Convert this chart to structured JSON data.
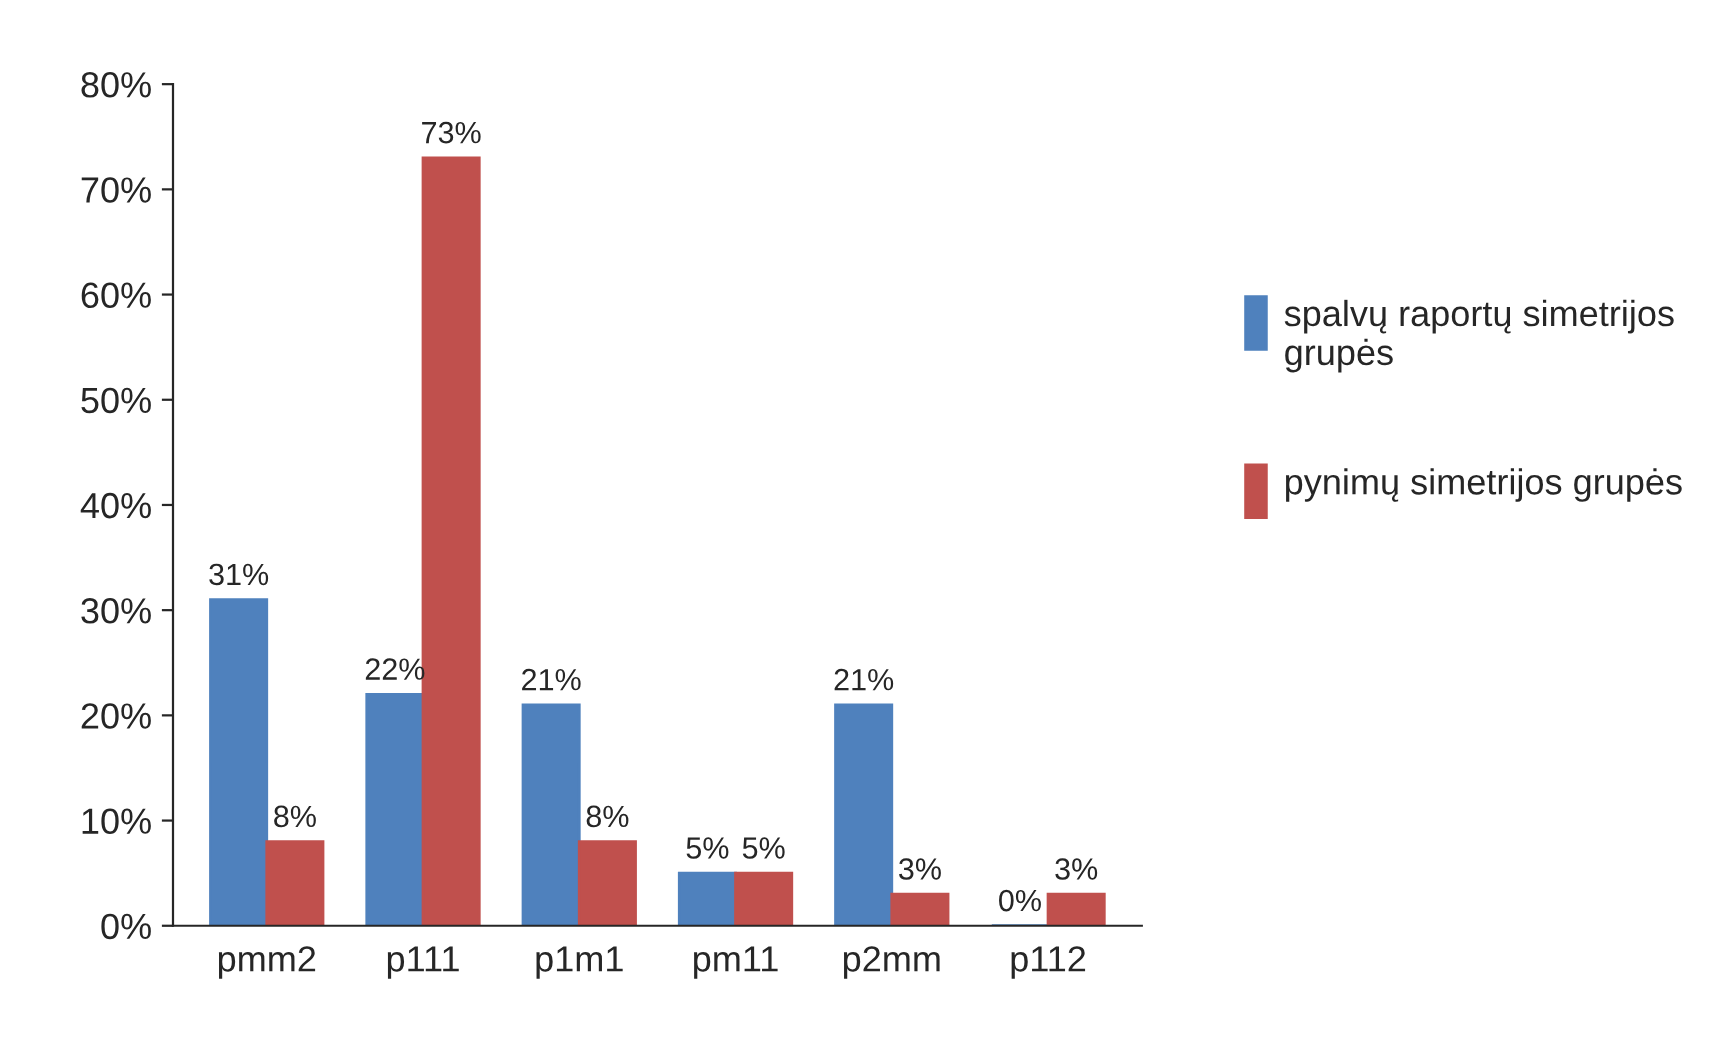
{
  "chart_data": {
    "type": "bar",
    "categories": [
      "pmm2",
      "p111",
      "p1m1",
      "pm11",
      "p2mm",
      "p112"
    ],
    "series": [
      {
        "name": "spalvų raportų simetrijos grupės",
        "color": "#4f81bd",
        "values": [
          31,
          22,
          21,
          5,
          21,
          0
        ],
        "value_labels": [
          "31%",
          "22%",
          "21%",
          "5%",
          "21%",
          "0%"
        ]
      },
      {
        "name": "pynimų simetrijos grupės",
        "color": "#c0504d",
        "values": [
          8,
          73,
          8,
          5,
          3,
          3
        ],
        "value_labels": [
          "8%",
          "73%",
          "8%",
          "5%",
          "3%",
          "3%"
        ]
      }
    ],
    "ylim": [
      0,
      80
    ],
    "yticks": [
      {
        "value": 0,
        "label": "0%"
      },
      {
        "value": 10,
        "label": "10%"
      },
      {
        "value": 20,
        "label": "20%"
      },
      {
        "value": 30,
        "label": "30%"
      },
      {
        "value": 40,
        "label": "40%"
      },
      {
        "value": 50,
        "label": "50%"
      },
      {
        "value": 60,
        "label": "60%"
      },
      {
        "value": 70,
        "label": "70%"
      },
      {
        "value": 80,
        "label": "80%"
      }
    ],
    "grid": false,
    "legend": "right"
  }
}
